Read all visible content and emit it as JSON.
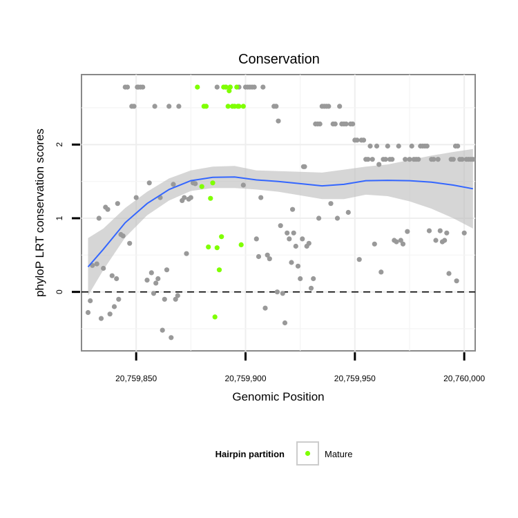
{
  "chart_data": {
    "type": "scatter",
    "title": "Conservation",
    "xlabel": "Genomic Position",
    "ylabel": "phyloP LRT conservation scores",
    "xlim": [
      20759825,
      20760005
    ],
    "ylim": [
      -0.8,
      2.95
    ],
    "x_ticks": [
      20759850,
      20759900,
      20759950,
      20760000
    ],
    "x_tick_labels": [
      "20,759,850",
      "20,759,900",
      "20,759,950",
      "20,760,000"
    ],
    "y_ticks": [
      0,
      1,
      2
    ],
    "y_tick_labels": [
      "0",
      "1",
      "2"
    ],
    "grid": true,
    "reference_line": {
      "y": 0,
      "style": "dashed"
    },
    "legend": {
      "position": "bottom",
      "title": "Hairpin partition",
      "entries": [
        {
          "label": "Mature",
          "color": "#7FFF00"
        }
      ]
    },
    "colors": {
      "other": "#999999",
      "mature": "#7FFF00",
      "smooth": "#3366FF",
      "ribbon": "#BBBBBB"
    },
    "series": [
      {
        "name": "",
        "color": "#999999",
        "points": [
          [
            20759828,
            -0.28
          ],
          [
            20759829,
            -0.12
          ],
          [
            20759830,
            0.36
          ],
          [
            20759832,
            0.38
          ],
          [
            20759833,
            1.0
          ],
          [
            20759834,
            -0.36
          ],
          [
            20759835,
            0.32
          ],
          [
            20759836,
            1.15
          ],
          [
            20759837,
            1.12
          ],
          [
            20759838,
            -0.3
          ],
          [
            20759839,
            0.22
          ],
          [
            20759840,
            -0.2
          ],
          [
            20759841,
            0.18
          ],
          [
            20759841.5,
            1.2
          ],
          [
            20759842,
            -0.1
          ],
          [
            20759843,
            0.78
          ],
          [
            20759844,
            0.76
          ],
          [
            20759845,
            2.78
          ],
          [
            20759846,
            2.78
          ],
          [
            20759847,
            0.66
          ],
          [
            20759848,
            2.52
          ],
          [
            20759849,
            2.52
          ],
          [
            20759850,
            1.28
          ],
          [
            20759850.5,
            2.78
          ],
          [
            20759851,
            2.78
          ],
          [
            20759852,
            2.78
          ],
          [
            20759853,
            2.78
          ],
          [
            20759855,
            0.16
          ],
          [
            20759856,
            1.48
          ],
          [
            20759857,
            0.26
          ],
          [
            20759858,
            -0.02
          ],
          [
            20759858.5,
            2.52
          ],
          [
            20759859,
            0.12
          ],
          [
            20759860,
            0.18
          ],
          [
            20759861,
            1.28
          ],
          [
            20759862,
            -0.52
          ],
          [
            20759863,
            -0.1
          ],
          [
            20759864,
            0.3
          ],
          [
            20759865,
            2.52
          ],
          [
            20759866,
            -0.62
          ],
          [
            20759867,
            1.46
          ],
          [
            20759868,
            -0.1
          ],
          [
            20759869,
            -0.05
          ],
          [
            20759869.5,
            2.52
          ],
          [
            20759871,
            1.24
          ],
          [
            20759872,
            1.28
          ],
          [
            20759873,
            0.52
          ],
          [
            20759874,
            1.26
          ],
          [
            20759875,
            1.28
          ],
          [
            20759876,
            1.48
          ],
          [
            20759877,
            1.47
          ],
          [
            20759887,
            2.78
          ],
          [
            20759891,
            2.78
          ],
          [
            20759893,
            2.78
          ],
          [
            20759897,
            2.78
          ],
          [
            20759899,
            1.45
          ],
          [
            20759900,
            2.78
          ],
          [
            20759901,
            2.78
          ],
          [
            20759902,
            2.78
          ],
          [
            20759903,
            2.78
          ],
          [
            20759904,
            2.78
          ],
          [
            20759905,
            0.72
          ],
          [
            20759906,
            0.48
          ],
          [
            20759907,
            1.28
          ],
          [
            20759908,
            2.78
          ],
          [
            20759909,
            -0.22
          ],
          [
            20759910,
            0.5
          ],
          [
            20759911,
            0.45
          ],
          [
            20759913,
            2.52
          ],
          [
            20759914,
            2.52
          ],
          [
            20759914.5,
            0.0
          ],
          [
            20759915,
            2.32
          ],
          [
            20759916,
            0.9
          ],
          [
            20759917,
            -0.02
          ],
          [
            20759918,
            -0.42
          ],
          [
            20759919,
            0.8
          ],
          [
            20759920,
            0.72
          ],
          [
            20759921,
            0.4
          ],
          [
            20759921.5,
            1.12
          ],
          [
            20759922,
            0.8
          ],
          [
            20759923,
            0.62
          ],
          [
            20759924,
            0.35
          ],
          [
            20759925,
            0.18
          ],
          [
            20759926,
            0.72
          ],
          [
            20759926.5,
            1.7
          ],
          [
            20759927,
            1.7
          ],
          [
            20759928,
            0.62
          ],
          [
            20759929,
            0.66
          ],
          [
            20759930,
            0.05
          ],
          [
            20759931,
            0.18
          ],
          [
            20759932,
            2.28
          ],
          [
            20759933,
            2.28
          ],
          [
            20759933.5,
            1.0
          ],
          [
            20759934,
            2.28
          ],
          [
            20759935,
            2.52
          ],
          [
            20759936,
            2.52
          ],
          [
            20759937,
            2.52
          ],
          [
            20759938,
            2.52
          ],
          [
            20759939,
            1.2
          ],
          [
            20759940,
            2.28
          ],
          [
            20759941,
            2.28
          ],
          [
            20759942,
            1.0
          ],
          [
            20759943,
            2.52
          ],
          [
            20759944,
            2.28
          ],
          [
            20759945,
            2.28
          ],
          [
            20759946,
            2.28
          ],
          [
            20759947,
            1.08
          ],
          [
            20759948,
            2.28
          ],
          [
            20759949,
            2.28
          ],
          [
            20759950,
            2.06
          ],
          [
            20759951,
            2.06
          ],
          [
            20759952,
            0.44
          ],
          [
            20759953,
            2.06
          ],
          [
            20759954,
            2.06
          ],
          [
            20759955,
            1.8
          ],
          [
            20759956,
            1.8
          ],
          [
            20759957,
            1.98
          ],
          [
            20759958,
            1.8
          ],
          [
            20759959,
            0.65
          ],
          [
            20759960,
            1.98
          ],
          [
            20759961,
            1.73
          ],
          [
            20759962,
            0.27
          ],
          [
            20759963,
            1.8
          ],
          [
            20759964,
            1.8
          ],
          [
            20759965,
            1.98
          ],
          [
            20759966,
            1.8
          ],
          [
            20759967,
            1.8
          ],
          [
            20759968,
            0.7
          ],
          [
            20759969,
            0.68
          ],
          [
            20759970,
            1.98
          ],
          [
            20759971,
            0.7
          ],
          [
            20759972,
            0.65
          ],
          [
            20759973,
            1.8
          ],
          [
            20759974,
            0.82
          ],
          [
            20759975,
            1.8
          ],
          [
            20759976,
            1.98
          ],
          [
            20759977,
            1.8
          ],
          [
            20759978,
            1.8
          ],
          [
            20759979,
            1.8
          ],
          [
            20759980,
            1.98
          ],
          [
            20759981,
            1.98
          ],
          [
            20759982,
            1.98
          ],
          [
            20759983,
            1.98
          ],
          [
            20759984,
            0.83
          ],
          [
            20759985,
            1.8
          ],
          [
            20759986,
            1.8
          ],
          [
            20759987,
            0.7
          ],
          [
            20759988,
            1.8
          ],
          [
            20759989,
            0.83
          ],
          [
            20759990,
            0.68
          ],
          [
            20759991,
            0.7
          ],
          [
            20759992,
            0.8
          ],
          [
            20759993,
            0.25
          ],
          [
            20759994,
            1.8
          ],
          [
            20759995,
            1.8
          ],
          [
            20759996,
            1.98
          ],
          [
            20759996.5,
            0.15
          ],
          [
            20759997,
            1.98
          ],
          [
            20759998,
            1.8
          ],
          [
            20759999,
            1.8
          ],
          [
            20760000,
            0.8
          ],
          [
            20760001,
            1.8
          ],
          [
            20760002,
            1.8
          ],
          [
            20760003,
            1.8
          ],
          [
            20760004,
            1.8
          ]
        ]
      },
      {
        "name": "Mature",
        "color": "#7FFF00",
        "points": [
          [
            20759878,
            2.78
          ],
          [
            20759880,
            1.43
          ],
          [
            20759881,
            2.52
          ],
          [
            20759882,
            2.52
          ],
          [
            20759883,
            0.61
          ],
          [
            20759884,
            1.27
          ],
          [
            20759885,
            1.48
          ],
          [
            20759886,
            -0.34
          ],
          [
            20759887,
            0.6
          ],
          [
            20759888,
            0.3
          ],
          [
            20759889,
            0.75
          ],
          [
            20759890,
            2.78
          ],
          [
            20759891,
            2.78
          ],
          [
            20759892,
            2.52
          ],
          [
            20759892.5,
            2.73
          ],
          [
            20759893,
            2.78
          ],
          [
            20759894,
            2.52
          ],
          [
            20759895,
            2.52
          ],
          [
            20759896,
            2.78
          ],
          [
            20759896.5,
            2.52
          ],
          [
            20759897,
            2.52
          ],
          [
            20759898,
            0.64
          ],
          [
            20759899,
            2.52
          ]
        ]
      }
    ],
    "smooth": {
      "x": [
        20759828,
        20759835,
        20759845,
        20759855,
        20759865,
        20759875,
        20759885,
        20759895,
        20759905,
        20759915,
        20759925,
        20759935,
        20759945,
        20759955,
        20759965,
        20759975,
        20759985,
        20759995,
        20760004
      ],
      "y": [
        0.34,
        0.58,
        0.94,
        1.2,
        1.39,
        1.51,
        1.555,
        1.56,
        1.52,
        1.5,
        1.47,
        1.44,
        1.46,
        1.51,
        1.515,
        1.51,
        1.49,
        1.45,
        1.4
      ],
      "lower": [
        -0.05,
        0.3,
        0.74,
        1.04,
        1.24,
        1.37,
        1.41,
        1.41,
        1.39,
        1.36,
        1.31,
        1.26,
        1.26,
        1.32,
        1.3,
        1.23,
        1.13,
        1.0,
        0.86
      ],
      "upper": [
        0.73,
        0.86,
        1.14,
        1.36,
        1.54,
        1.65,
        1.7,
        1.71,
        1.65,
        1.64,
        1.63,
        1.62,
        1.66,
        1.7,
        1.73,
        1.79,
        1.85,
        1.9,
        1.94
      ]
    }
  }
}
